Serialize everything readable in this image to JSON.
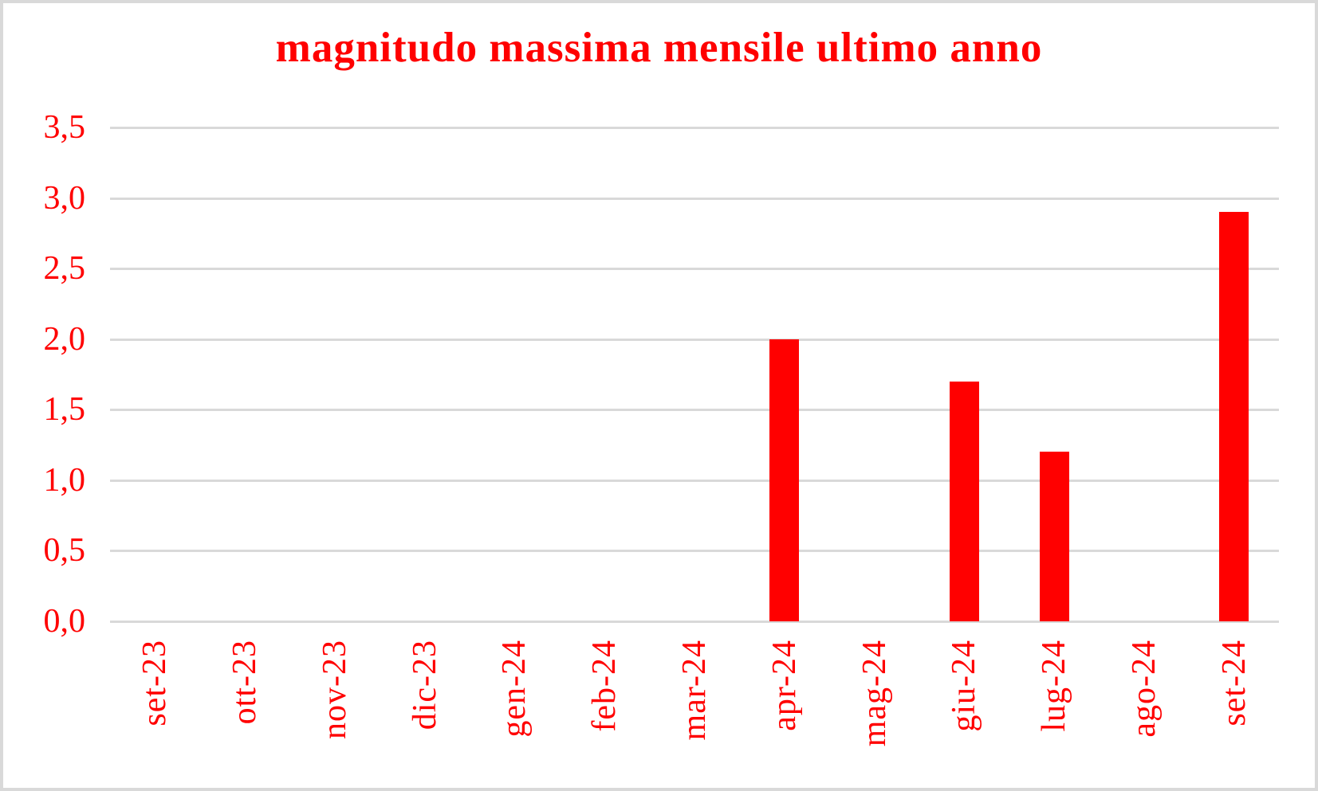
{
  "chart_data": {
    "type": "bar",
    "title": "magnitudo massima mensile ultimo anno",
    "categories": [
      "set-23",
      "ott-23",
      "nov-23",
      "dic-23",
      "gen-24",
      "feb-24",
      "mar-24",
      "apr-24",
      "mag-24",
      "giu-24",
      "lug-24",
      "ago-24",
      "set-24"
    ],
    "values": [
      0,
      0,
      0,
      0,
      0,
      0,
      0,
      2.0,
      0,
      1.7,
      1.2,
      0,
      2.9
    ],
    "y_ticks": [
      {
        "value": 0.0,
        "label": "0,0"
      },
      {
        "value": 0.5,
        "label": "0,5"
      },
      {
        "value": 1.0,
        "label": "1,0"
      },
      {
        "value": 1.5,
        "label": "1,5"
      },
      {
        "value": 2.0,
        "label": "2,0"
      },
      {
        "value": 2.5,
        "label": "2,5"
      },
      {
        "value": 3.0,
        "label": "3,0"
      },
      {
        "value": 3.5,
        "label": "3,5"
      }
    ],
    "ylim": [
      0,
      3.5
    ],
    "xlabel": "",
    "ylabel": "",
    "grid": true,
    "legend": false,
    "bar_color": "#ff0000",
    "text_color": "#ff0000",
    "gridline_color": "#d9d9d9",
    "border_color": "#d9d9d9",
    "background_color": "#ffffff"
  }
}
